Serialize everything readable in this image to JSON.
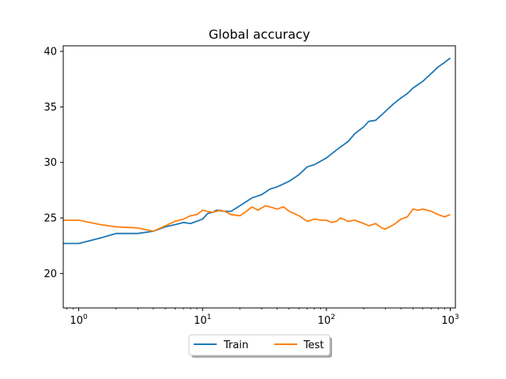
{
  "chart_data": {
    "type": "line",
    "title": "Global accuracy",
    "xlabel": "",
    "ylabel": "",
    "xscale": "log",
    "xlim": [
      0.75,
      1100
    ],
    "ylim": [
      16.9,
      40.5
    ],
    "x_ticks": [
      {
        "base": "10",
        "exp": "0",
        "value": 1
      },
      {
        "base": "10",
        "exp": "1",
        "value": 10
      },
      {
        "base": "10",
        "exp": "2",
        "value": 100
      },
      {
        "base": "10",
        "exp": "3",
        "value": 1000
      }
    ],
    "y_ticks": [
      {
        "label": "20",
        "value": 20
      },
      {
        "label": "25",
        "value": 25
      },
      {
        "label": "30",
        "value": 30
      },
      {
        "label": "35",
        "value": 35
      },
      {
        "label": "40",
        "value": 40
      }
    ],
    "grid": false,
    "legend": {
      "placement": "bottom-center-outside",
      "ncol": 2
    },
    "series": [
      {
        "name": "Train",
        "color": "#1f77b4",
        "points": [
          [
            0.75,
            22.7
          ],
          [
            1,
            22.7
          ],
          [
            1.5,
            23.2
          ],
          [
            2,
            23.6
          ],
          [
            3,
            23.6
          ],
          [
            4,
            23.8
          ],
          [
            5,
            24.2
          ],
          [
            6,
            24.4
          ],
          [
            7,
            24.6
          ],
          [
            8,
            24.5
          ],
          [
            10,
            24.9
          ],
          [
            11,
            25.4
          ],
          [
            12,
            25.5
          ],
          [
            13,
            25.7
          ],
          [
            15,
            25.6
          ],
          [
            17,
            25.6
          ],
          [
            20,
            26.1
          ],
          [
            25,
            26.8
          ],
          [
            30,
            27.1
          ],
          [
            35,
            27.6
          ],
          [
            40,
            27.8
          ],
          [
            50,
            28.3
          ],
          [
            60,
            28.9
          ],
          [
            70,
            29.6
          ],
          [
            80,
            29.8
          ],
          [
            100,
            30.4
          ],
          [
            120,
            31.1
          ],
          [
            150,
            31.9
          ],
          [
            170,
            32.6
          ],
          [
            200,
            33.2
          ],
          [
            220,
            33.7
          ],
          [
            250,
            33.8
          ],
          [
            300,
            34.6
          ],
          [
            350,
            35.3
          ],
          [
            400,
            35.8
          ],
          [
            450,
            36.2
          ],
          [
            500,
            36.7
          ],
          [
            600,
            37.3
          ],
          [
            700,
            38.0
          ],
          [
            800,
            38.6
          ],
          [
            900,
            39.0
          ],
          [
            1000,
            39.4
          ]
        ]
      },
      {
        "name": "Test",
        "color": "#ff7f0e",
        "points": [
          [
            0.75,
            24.8
          ],
          [
            1,
            24.8
          ],
          [
            1.5,
            24.4
          ],
          [
            2,
            24.2
          ],
          [
            3,
            24.1
          ],
          [
            4,
            23.8
          ],
          [
            5,
            24.3
          ],
          [
            6,
            24.7
          ],
          [
            7,
            24.9
          ],
          [
            8,
            25.2
          ],
          [
            9,
            25.3
          ],
          [
            10,
            25.7
          ],
          [
            12,
            25.5
          ],
          [
            14,
            25.7
          ],
          [
            15,
            25.6
          ],
          [
            17,
            25.3
          ],
          [
            20,
            25.2
          ],
          [
            22,
            25.5
          ],
          [
            25,
            26.0
          ],
          [
            28,
            25.7
          ],
          [
            32,
            26.1
          ],
          [
            35,
            26.0
          ],
          [
            40,
            25.8
          ],
          [
            45,
            26.0
          ],
          [
            50,
            25.6
          ],
          [
            55,
            25.4
          ],
          [
            60,
            25.2
          ],
          [
            70,
            24.7
          ],
          [
            80,
            24.9
          ],
          [
            90,
            24.8
          ],
          [
            100,
            24.8
          ],
          [
            110,
            24.6
          ],
          [
            120,
            24.7
          ],
          [
            130,
            25.0
          ],
          [
            150,
            24.7
          ],
          [
            170,
            24.8
          ],
          [
            200,
            24.5
          ],
          [
            220,
            24.3
          ],
          [
            250,
            24.5
          ],
          [
            280,
            24.1
          ],
          [
            300,
            24.0
          ],
          [
            350,
            24.4
          ],
          [
            400,
            24.9
          ],
          [
            450,
            25.1
          ],
          [
            500,
            25.8
          ],
          [
            550,
            25.7
          ],
          [
            600,
            25.8
          ],
          [
            700,
            25.6
          ],
          [
            800,
            25.3
          ],
          [
            900,
            25.1
          ],
          [
            1000,
            25.3
          ]
        ]
      }
    ]
  }
}
